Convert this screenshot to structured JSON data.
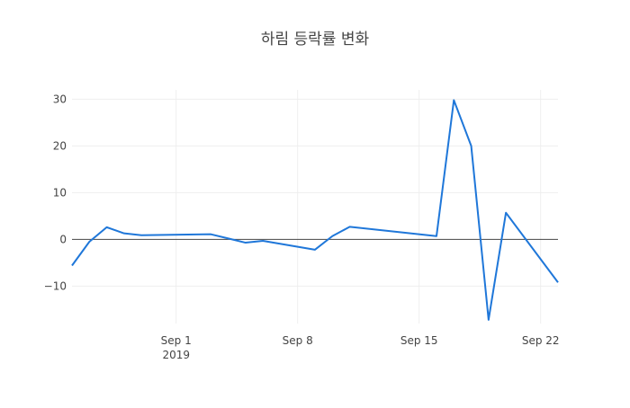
{
  "chart_data": {
    "type": "line",
    "title": "하림 등락률 변화",
    "xlabel": "",
    "ylabel": "",
    "x_ticks": [
      {
        "date": "2019-09-01",
        "label": "Sep 1",
        "sublabel": "2019"
      },
      {
        "date": "2019-09-08",
        "label": "Sep 8",
        "sublabel": ""
      },
      {
        "date": "2019-09-15",
        "label": "Sep 15",
        "sublabel": ""
      },
      {
        "date": "2019-09-22",
        "label": "Sep 22",
        "sublabel": ""
      }
    ],
    "y_ticks": [
      {
        "value": 30,
        "label": "30"
      },
      {
        "value": 20,
        "label": "20"
      },
      {
        "value": 10,
        "label": "10"
      },
      {
        "value": 0,
        "label": "0"
      },
      {
        "value": -10,
        "label": "−10"
      }
    ],
    "xlim": [
      "2019-08-26",
      "2019-09-23"
    ],
    "ylim": [
      -18,
      32
    ],
    "grid": true,
    "series": [
      {
        "color": "#1f77d9",
        "x": [
          "2019-08-26",
          "2019-08-27",
          "2019-08-28",
          "2019-08-29",
          "2019-08-30",
          "2019-09-03",
          "2019-09-05",
          "2019-09-06",
          "2019-09-09",
          "2019-09-10",
          "2019-09-11",
          "2019-09-16",
          "2019-09-17",
          "2019-09-18",
          "2019-09-19",
          "2019-09-20",
          "2019-09-23"
        ],
        "y": [
          -5.6,
          -0.5,
          2.6,
          1.3,
          0.9,
          1.1,
          -0.7,
          -0.3,
          -2.2,
          0.7,
          2.7,
          0.7,
          29.8,
          20.0,
          -17.2,
          5.7,
          -9.2
        ]
      }
    ],
    "zero_line_color": "#444444",
    "grid_color": "#eeeeee"
  }
}
